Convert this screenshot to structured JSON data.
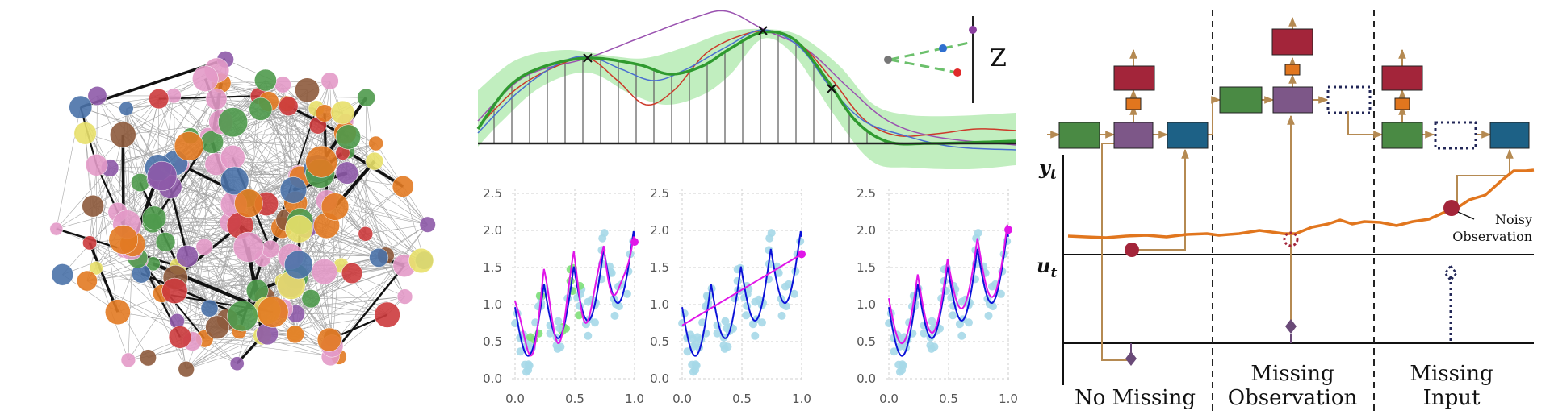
{
  "colors": {
    "green": "#4a8a44",
    "purple": "#7d5788",
    "blue": "#1d6186",
    "red": "#a3253a",
    "orange": "#e1761e",
    "tan": "#b58a52",
    "navy": "#232858",
    "gp_fill": "#8ee08a",
    "scatter_light": "#a6d8e8",
    "scatter_green": "#7fe07a",
    "fit_blue": "#0b12d8",
    "fit_magenta": "#e016e8"
  },
  "network_graph": {
    "node_colors": [
      "purple",
      "pink",
      "green",
      "orange",
      "red",
      "blue",
      "yellow",
      "brown"
    ]
  },
  "gp_diagram": {
    "z_label": "Z",
    "inducing_point_marker": "x"
  },
  "scatter_panels": {
    "y_ticks": [
      "0.0",
      "0.5",
      "1.0",
      "1.5",
      "2.0",
      "2.5"
    ],
    "x_ticks": [
      "0.0",
      "0.5",
      "1.0"
    ],
    "panel_count": 3
  },
  "state_space": {
    "axis_y": "y",
    "axis_y_sub": "t",
    "axis_u": "u",
    "axis_u_sub": "t",
    "annotation_line1": "Noisy",
    "annotation_line2": "Observation",
    "sections": [
      {
        "line1": "No Missing",
        "line2": ""
      },
      {
        "line1": "Missing",
        "line2": "Observation"
      },
      {
        "line1": "Missing",
        "line2": "Input"
      }
    ]
  }
}
